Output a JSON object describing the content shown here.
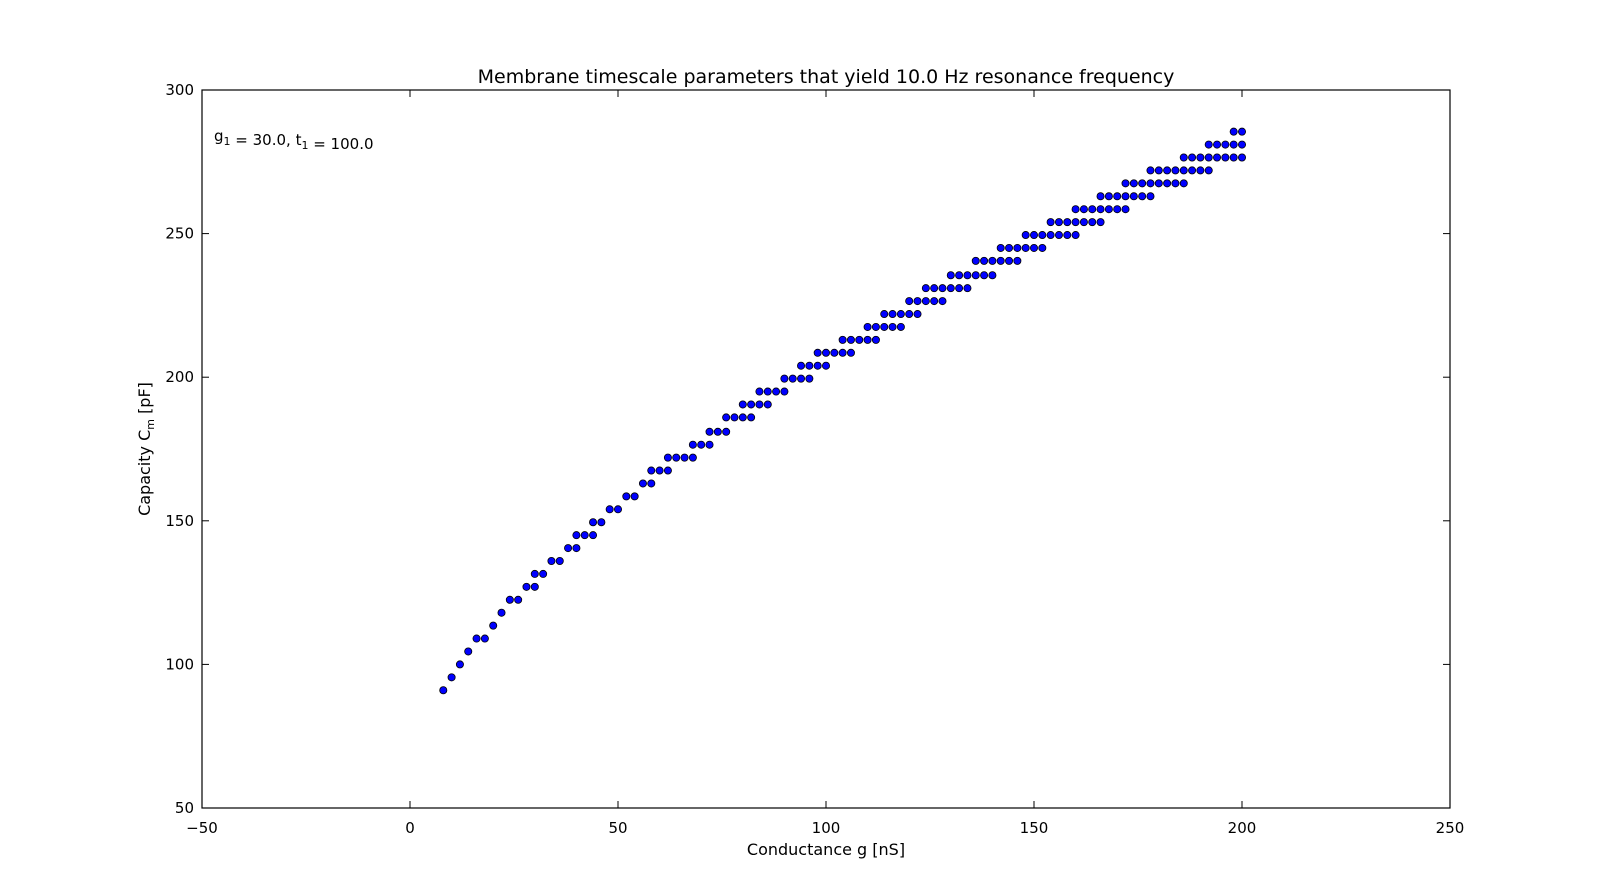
{
  "chart_data": {
    "type": "scatter",
    "title": "Membrane timescale parameters that yield 10.0 Hz resonance frequency",
    "xlabel": "Conductance g [nS]",
    "ylabel": {
      "base": "Capacity C",
      "sub": "m",
      "rest": " [pF]"
    },
    "annotation": {
      "parts": [
        {
          "text": "g",
          "sub": "1"
        },
        {
          "text": " = 30.0, t",
          "sub": "1"
        },
        {
          "text": " = 100.0",
          "sub": ""
        }
      ],
      "position": "top-left"
    },
    "xlim": [
      -50,
      250
    ],
    "ylim": [
      50,
      300
    ],
    "xticks": [
      -50,
      0,
      50,
      100,
      150,
      200,
      250
    ],
    "yticks": [
      50,
      100,
      150,
      200,
      250,
      300
    ],
    "xtick_labels": [
      "−50",
      "0",
      "50",
      "100",
      "150",
      "200",
      "250"
    ],
    "ytick_labels": [
      "50",
      "100",
      "150",
      "200",
      "250",
      "300"
    ],
    "grid": false,
    "marker_color": "#0000ff",
    "marker_edge_color": "#000000",
    "points": [
      [
        8,
        91
      ],
      [
        10,
        95.5
      ],
      [
        12,
        100
      ],
      [
        14,
        104.5
      ],
      [
        16,
        109
      ],
      [
        18,
        109
      ],
      [
        20,
        113.5
      ],
      [
        22,
        118
      ],
      [
        24,
        122.5
      ],
      [
        26,
        122.5
      ],
      [
        28,
        127
      ],
      [
        30,
        127
      ],
      [
        30,
        131.5
      ],
      [
        32,
        131.5
      ],
      [
        34,
        136
      ],
      [
        36,
        136
      ],
      [
        38,
        140.5
      ],
      [
        40,
        140.5
      ],
      [
        40,
        145
      ],
      [
        42,
        145
      ],
      [
        44,
        145
      ],
      [
        44,
        149.5
      ],
      [
        46,
        149.5
      ],
      [
        48,
        154
      ],
      [
        50,
        154
      ],
      [
        52,
        158.5
      ],
      [
        54,
        158.5
      ],
      [
        56,
        163
      ],
      [
        58,
        163
      ],
      [
        58,
        167.5
      ],
      [
        60,
        167.5
      ],
      [
        62,
        167.5
      ],
      [
        62,
        172
      ],
      [
        64,
        172
      ],
      [
        66,
        172
      ],
      [
        68,
        172
      ],
      [
        68,
        176.5
      ],
      [
        70,
        176.5
      ],
      [
        72,
        176.5
      ],
      [
        72,
        181
      ],
      [
        74,
        181
      ],
      [
        76,
        181
      ],
      [
        76,
        186
      ],
      [
        78,
        186
      ],
      [
        80,
        186
      ],
      [
        82,
        186
      ],
      [
        80,
        190.5
      ],
      [
        82,
        190.5
      ],
      [
        84,
        190.5
      ],
      [
        86,
        190.5
      ],
      [
        84,
        195
      ],
      [
        86,
        195
      ],
      [
        88,
        195
      ],
      [
        90,
        195
      ],
      [
        90,
        199.5
      ],
      [
        92,
        199.5
      ],
      [
        94,
        199.5
      ],
      [
        96,
        199.5
      ],
      [
        94,
        204
      ],
      [
        96,
        204
      ],
      [
        98,
        204
      ],
      [
        100,
        204
      ],
      [
        98,
        208.5
      ],
      [
        100,
        208.5
      ],
      [
        102,
        208.5
      ],
      [
        104,
        208.5
      ],
      [
        106,
        208.5
      ],
      [
        104,
        213
      ],
      [
        106,
        213
      ],
      [
        108,
        213
      ],
      [
        110,
        213
      ],
      [
        112,
        213
      ],
      [
        110,
        217.5
      ],
      [
        112,
        217.5
      ],
      [
        114,
        217.5
      ],
      [
        116,
        217.5
      ],
      [
        118,
        217.5
      ],
      [
        114,
        222
      ],
      [
        116,
        222
      ],
      [
        118,
        222
      ],
      [
        120,
        222
      ],
      [
        122,
        222
      ],
      [
        120,
        226.5
      ],
      [
        122,
        226.5
      ],
      [
        124,
        226.5
      ],
      [
        126,
        226.5
      ],
      [
        128,
        226.5
      ],
      [
        124,
        231
      ],
      [
        126,
        231
      ],
      [
        128,
        231
      ],
      [
        130,
        231
      ],
      [
        132,
        231
      ],
      [
        134,
        231
      ],
      [
        130,
        235.5
      ],
      [
        132,
        235.5
      ],
      [
        134,
        235.5
      ],
      [
        136,
        235.5
      ],
      [
        138,
        235.5
      ],
      [
        140,
        235.5
      ],
      [
        136,
        240.5
      ],
      [
        138,
        240.5
      ],
      [
        140,
        240.5
      ],
      [
        142,
        240.5
      ],
      [
        144,
        240.5
      ],
      [
        146,
        240.5
      ],
      [
        142,
        245
      ],
      [
        144,
        245
      ],
      [
        146,
        245
      ],
      [
        148,
        245
      ],
      [
        150,
        245
      ],
      [
        152,
        245
      ],
      [
        148,
        249.5
      ],
      [
        150,
        249.5
      ],
      [
        152,
        249.5
      ],
      [
        154,
        249.5
      ],
      [
        156,
        249.5
      ],
      [
        158,
        249.5
      ],
      [
        160,
        249.5
      ],
      [
        154,
        254
      ],
      [
        156,
        254
      ],
      [
        158,
        254
      ],
      [
        160,
        254
      ],
      [
        162,
        254
      ],
      [
        164,
        254
      ],
      [
        166,
        254
      ],
      [
        160,
        258.5
      ],
      [
        162,
        258.5
      ],
      [
        164,
        258.5
      ],
      [
        166,
        258.5
      ],
      [
        168,
        258.5
      ],
      [
        170,
        258.5
      ],
      [
        172,
        258.5
      ],
      [
        166,
        263
      ],
      [
        168,
        263
      ],
      [
        170,
        263
      ],
      [
        172,
        263
      ],
      [
        174,
        263
      ],
      [
        176,
        263
      ],
      [
        178,
        263
      ],
      [
        172,
        267.5
      ],
      [
        174,
        267.5
      ],
      [
        176,
        267.5
      ],
      [
        178,
        267.5
      ],
      [
        180,
        267.5
      ],
      [
        182,
        267.5
      ],
      [
        184,
        267.5
      ],
      [
        186,
        267.5
      ],
      [
        178,
        272
      ],
      [
        180,
        272
      ],
      [
        182,
        272
      ],
      [
        184,
        272
      ],
      [
        186,
        272
      ],
      [
        188,
        272
      ],
      [
        190,
        272
      ],
      [
        192,
        272
      ],
      [
        186,
        276.5
      ],
      [
        188,
        276.5
      ],
      [
        190,
        276.5
      ],
      [
        192,
        276.5
      ],
      [
        194,
        276.5
      ],
      [
        196,
        276.5
      ],
      [
        198,
        276.5
      ],
      [
        200,
        276.5
      ],
      [
        192,
        281
      ],
      [
        194,
        281
      ],
      [
        196,
        281
      ],
      [
        198,
        281
      ],
      [
        200,
        281
      ],
      [
        198,
        285.5
      ],
      [
        200,
        285.5
      ]
    ]
  }
}
